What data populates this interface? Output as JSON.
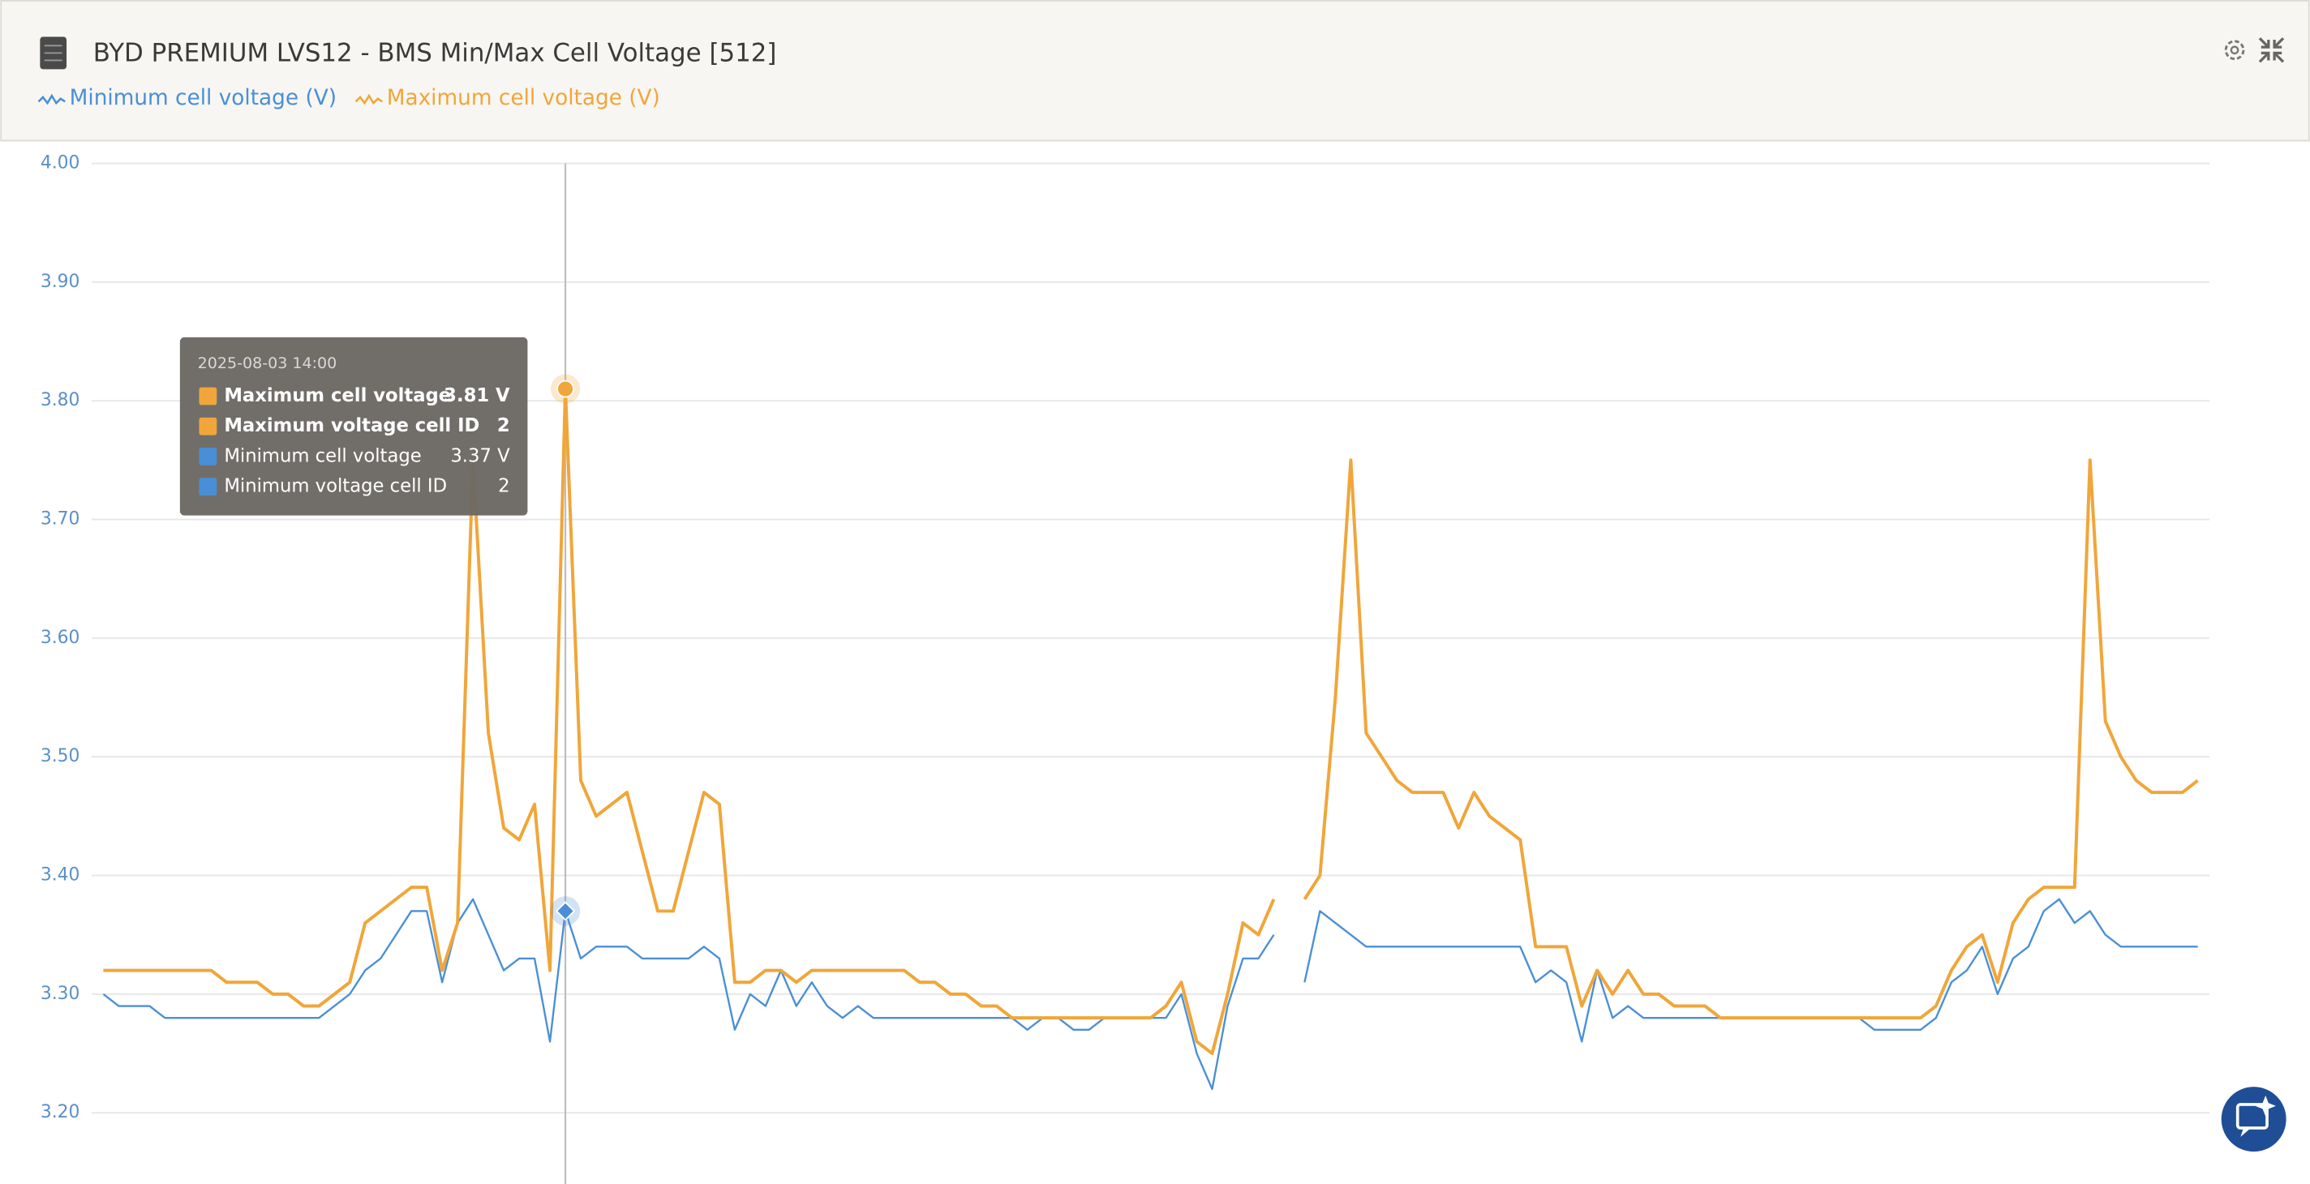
{
  "chart_data": {
    "type": "line",
    "title": "BYD PREMIUM LVS12 - BMS Min/Max Cell Voltage [512]",
    "ylim": [
      3.14,
      4.0
    ],
    "yticks": [
      {
        "value": 4.0,
        "label": "4.00"
      },
      {
        "value": 3.9,
        "label": "3.90"
      },
      {
        "value": 3.8,
        "label": "3.80"
      },
      {
        "value": 3.7,
        "label": "3.70"
      },
      {
        "value": 3.6,
        "label": "3.60"
      },
      {
        "value": 3.5,
        "label": "3.50"
      },
      {
        "value": 3.4,
        "label": "3.40"
      },
      {
        "value": 3.3,
        "label": "3.30"
      },
      {
        "value": 3.2,
        "label": "3.20"
      }
    ],
    "grid": true,
    "series": [
      {
        "name": "Minimum cell voltage (V)",
        "color": "#4a8fd6",
        "values": [
          3.3,
          3.29,
          3.29,
          3.29,
          3.28,
          3.28,
          3.28,
          3.28,
          3.28,
          3.28,
          3.28,
          3.28,
          3.28,
          3.28,
          3.28,
          3.29,
          3.3,
          3.32,
          3.33,
          3.35,
          3.37,
          3.37,
          3.31,
          3.36,
          3.38,
          3.35,
          3.32,
          3.33,
          3.33,
          3.26,
          3.37,
          3.33,
          3.34,
          3.34,
          3.34,
          3.33,
          3.33,
          3.33,
          3.33,
          3.34,
          3.33,
          3.27,
          3.3,
          3.29,
          3.32,
          3.29,
          3.31,
          3.29,
          3.28,
          3.29,
          3.28,
          3.28,
          3.28,
          3.28,
          3.28,
          3.28,
          3.28,
          3.28,
          3.28,
          3.28,
          3.27,
          3.28,
          3.28,
          3.27,
          3.27,
          3.28,
          3.28,
          3.28,
          3.28,
          3.28,
          3.3,
          3.25,
          3.22,
          3.29,
          3.33,
          3.33,
          3.35,
          null,
          3.31,
          3.37,
          3.36,
          3.35,
          3.34,
          3.34,
          3.34,
          3.34,
          3.34,
          3.34,
          3.34,
          3.34,
          3.34,
          3.34,
          3.34,
          3.31,
          3.32,
          3.31,
          3.26,
          3.32,
          3.28,
          3.29,
          3.28,
          3.28,
          3.28,
          3.28,
          3.28,
          3.28,
          3.28,
          3.28,
          3.28,
          3.28,
          3.28,
          3.28,
          3.28,
          3.28,
          3.28,
          3.27,
          3.27,
          3.27,
          3.27,
          3.28,
          3.31,
          3.32,
          3.34,
          3.3,
          3.33,
          3.34,
          3.37,
          3.38,
          3.36,
          3.37,
          3.35,
          3.34,
          3.34,
          3.34,
          3.34,
          3.34,
          3.34
        ]
      },
      {
        "name": "Maximum cell voltage (V)",
        "color": "#f0a63a",
        "values": [
          3.32,
          3.32,
          3.32,
          3.32,
          3.32,
          3.32,
          3.32,
          3.32,
          3.31,
          3.31,
          3.31,
          3.3,
          3.3,
          3.29,
          3.29,
          3.3,
          3.31,
          3.36,
          3.37,
          3.38,
          3.39,
          3.39,
          3.32,
          3.36,
          3.75,
          3.52,
          3.44,
          3.43,
          3.46,
          3.32,
          3.81,
          3.48,
          3.45,
          3.46,
          3.47,
          3.42,
          3.37,
          3.37,
          3.42,
          3.47,
          3.46,
          3.31,
          3.31,
          3.32,
          3.32,
          3.31,
          3.32,
          3.32,
          3.32,
          3.32,
          3.32,
          3.32,
          3.32,
          3.31,
          3.31,
          3.3,
          3.3,
          3.29,
          3.29,
          3.28,
          3.28,
          3.28,
          3.28,
          3.28,
          3.28,
          3.28,
          3.28,
          3.28,
          3.28,
          3.29,
          3.31,
          3.26,
          3.25,
          3.3,
          3.36,
          3.35,
          3.38,
          null,
          3.38,
          3.4,
          3.55,
          3.75,
          3.52,
          3.5,
          3.48,
          3.47,
          3.47,
          3.47,
          3.44,
          3.47,
          3.45,
          3.44,
          3.43,
          3.34,
          3.34,
          3.34,
          3.29,
          3.32,
          3.3,
          3.32,
          3.3,
          3.3,
          3.29,
          3.29,
          3.29,
          3.28,
          3.28,
          3.28,
          3.28,
          3.28,
          3.28,
          3.28,
          3.28,
          3.28,
          3.28,
          3.28,
          3.28,
          3.28,
          3.28,
          3.29,
          3.32,
          3.34,
          3.35,
          3.31,
          3.36,
          3.38,
          3.39,
          3.39,
          3.39,
          3.75,
          3.53,
          3.5,
          3.48,
          3.47,
          3.47,
          3.47,
          3.48
        ]
      }
    ],
    "tooltip": {
      "time": "2025-08-03 14:00",
      "rows": [
        {
          "label": "Maximum cell voltage",
          "value": "3.81 V",
          "color": "#f0a63a",
          "bold": true
        },
        {
          "label": "Maximum voltage cell ID",
          "value": "2",
          "color": "#f0a63a",
          "bold": true
        },
        {
          "label": "Minimum cell voltage",
          "value": "3.37 V",
          "color": "#4a8fd6",
          "bold": false
        },
        {
          "label": "Minimum voltage cell ID",
          "value": "2",
          "color": "#4a8fd6",
          "bold": false
        }
      ]
    }
  }
}
